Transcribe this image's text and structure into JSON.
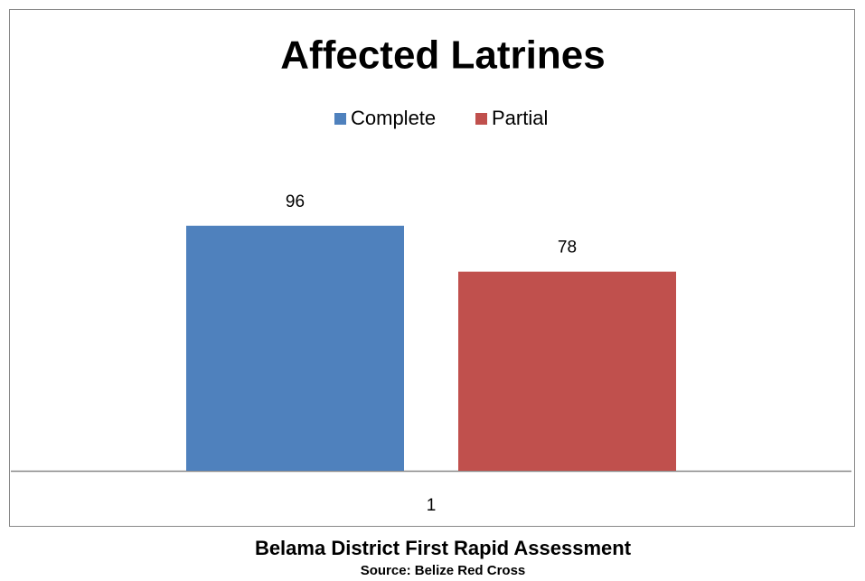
{
  "chart_data": {
    "type": "bar",
    "title": "Affected Latrines",
    "categories": [
      "1"
    ],
    "series": [
      {
        "name": "Complete",
        "color": "#4f81bd",
        "values": [
          96
        ]
      },
      {
        "name": "Partial",
        "color": "#c0504d",
        "values": [
          78
        ]
      }
    ],
    "ylim": [
      0,
      120
    ],
    "legend": "top",
    "data_labels": true
  },
  "caption": {
    "title": "Belama District First Rapid Assessment",
    "source": "Source: Belize Red Cross"
  }
}
